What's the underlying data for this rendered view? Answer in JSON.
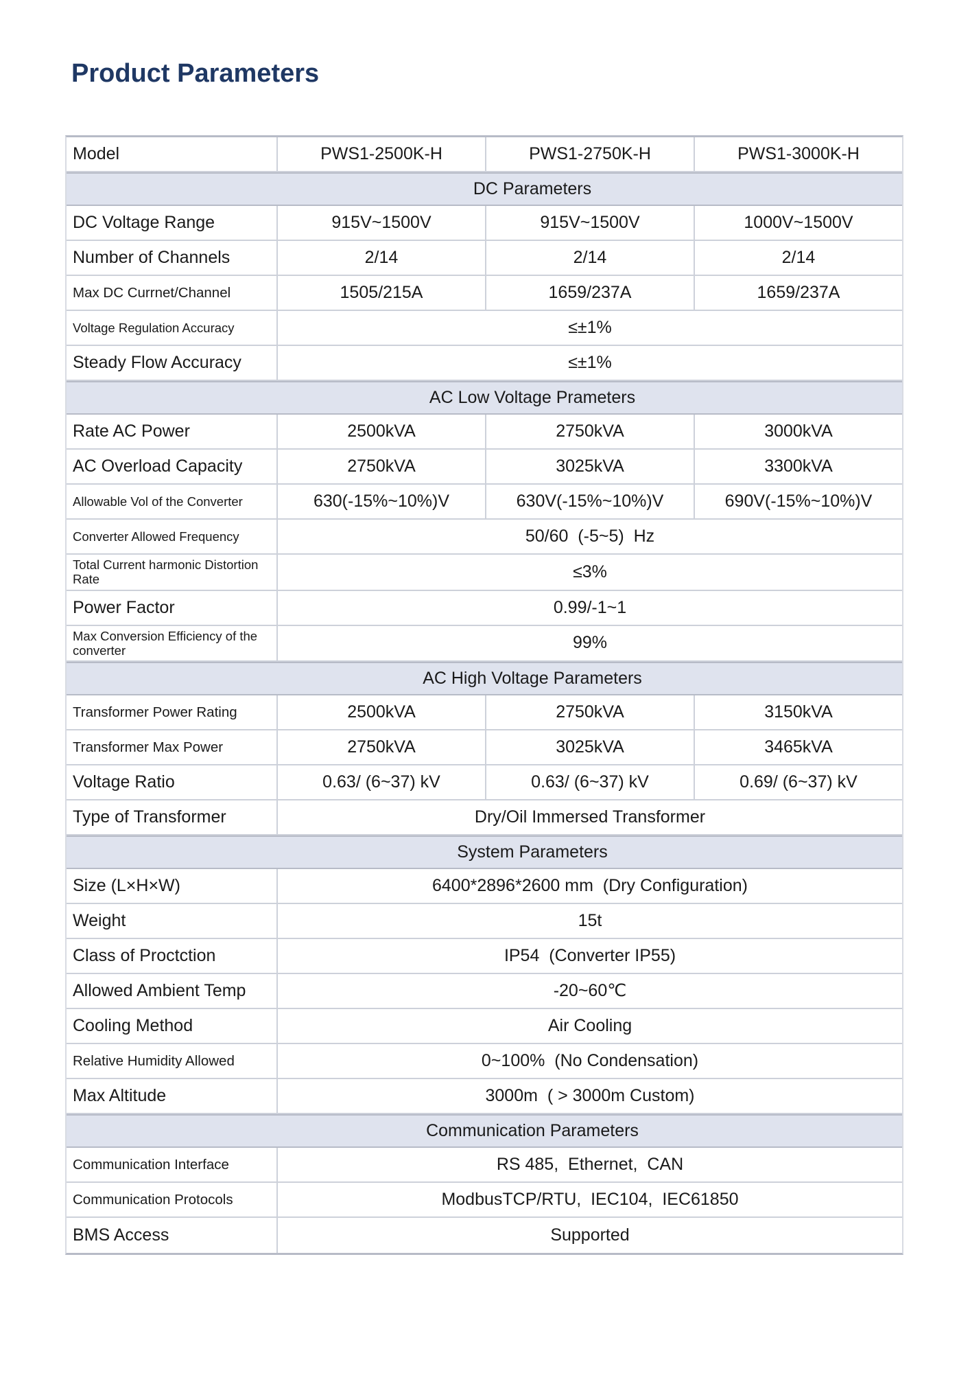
{
  "page": {
    "title": "Product Parameters"
  },
  "colors": {
    "title_color": "#1F3864",
    "section_bg": "#DFE3EE",
    "line": "#CDD1DA",
    "line_strong": "#B7BBC7",
    "text": "#1A1A1A"
  },
  "table": {
    "rows": [
      {
        "type": "columns",
        "label": "Model",
        "values": [
          "PWS1-2500K-H",
          "PWS1-2750K-H",
          "PWS1-3000K-H"
        ]
      },
      {
        "type": "section",
        "label": "DC Parameters"
      },
      {
        "type": "data",
        "label": "DC Voltage Range",
        "values": [
          "915V~1500V",
          "915V~1500V",
          "1000V~1500V"
        ]
      },
      {
        "type": "data",
        "label": "Number of Channels",
        "values": [
          "2/14",
          "2/14",
          "2/14"
        ]
      },
      {
        "type": "data",
        "label": "Max DC Currnet/Channel",
        "values": [
          "1505/215A",
          "1659/237A",
          "1659/237A"
        ]
      },
      {
        "type": "span",
        "label": "Voltage Regulation Accuracy",
        "value": "≤±1%"
      },
      {
        "type": "span",
        "label": "Steady Flow Accuracy",
        "value": "≤±1%"
      },
      {
        "type": "section",
        "label": "AC Low Voltage Prameters"
      },
      {
        "type": "data",
        "label": "Rate AC Power",
        "values": [
          "2500kVA",
          "2750kVA",
          "3000kVA"
        ]
      },
      {
        "type": "data",
        "label": "AC Overload Capacity",
        "values": [
          "2750kVA",
          "3025kVA",
          "3300kVA"
        ]
      },
      {
        "type": "data",
        "label": "Allowable Vol of the Converter",
        "values": [
          "630(-15%~10%)V",
          "630V(-15%~10%)V",
          "690V(-15%~10%)V"
        ]
      },
      {
        "type": "span",
        "label": "Converter Allowed Frequency",
        "value": "50/60  (-5~5)  Hz"
      },
      {
        "type": "span",
        "label": "Total Current harmonic Distortion Rate",
        "value": "≤3%"
      },
      {
        "type": "span",
        "label": "Power Factor",
        "value": "0.99/-1~1"
      },
      {
        "type": "span",
        "label": "Max Conversion Efficiency of the converter",
        "value": "99%"
      },
      {
        "type": "section",
        "label": "AC High Voltage Parameters"
      },
      {
        "type": "data",
        "label": "Transformer Power Rating",
        "values": [
          "2500kVA",
          "2750kVA",
          "3150kVA"
        ]
      },
      {
        "type": "data",
        "label": "Transformer Max Power",
        "values": [
          "2750kVA",
          "3025kVA",
          "3465kVA"
        ]
      },
      {
        "type": "data",
        "label": "Voltage Ratio",
        "values": [
          "0.63/ (6~37) kV",
          "0.63/ (6~37) kV",
          "0.69/ (6~37) kV"
        ]
      },
      {
        "type": "span",
        "label": "Type of Transformer",
        "value": "Dry/Oil Immersed Transformer"
      },
      {
        "type": "section",
        "label": "System Parameters"
      },
      {
        "type": "span",
        "label": "Size (L×H×W)",
        "value": "6400*2896*2600 mm  (Dry Configuration)"
      },
      {
        "type": "span",
        "label": "Weight",
        "value": "15t"
      },
      {
        "type": "span",
        "label": "Class of Proctction",
        "value": "IP54  (Converter IP55)"
      },
      {
        "type": "span",
        "label": "Allowed Ambient Temp",
        "value": "-20~60℃"
      },
      {
        "type": "span",
        "label": "Cooling Method",
        "value": "Air Cooling"
      },
      {
        "type": "span",
        "label": "Relative Humidity Allowed",
        "value": "0~100%  (No Condensation)"
      },
      {
        "type": "span",
        "label": "Max Altitude",
        "value": "3000m  ( > 3000m Custom)"
      },
      {
        "type": "section",
        "label": "Communication Parameters"
      },
      {
        "type": "span",
        "label": "Communication Interface",
        "value": "RS 485,  Ethernet,  CAN"
      },
      {
        "type": "span",
        "label": "Communication Protocols",
        "value": "ModbusTCP/RTU,  IEC104,  IEC61850"
      },
      {
        "type": "span",
        "label": "BMS Access",
        "value": "Supported"
      }
    ]
  }
}
